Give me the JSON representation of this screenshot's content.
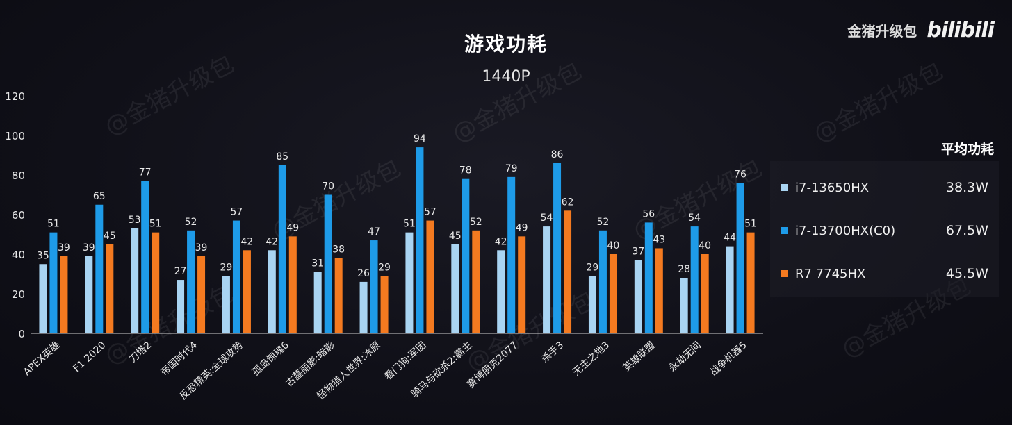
{
  "brand": {
    "name": "金猪升级包",
    "logo": "bilibili"
  },
  "watermark": "@金猪升级包",
  "chart_data": {
    "type": "bar",
    "title": "游戏功耗",
    "subtitle": "1440P",
    "ylim": [
      0,
      120
    ],
    "yticks": [
      0,
      20,
      40,
      60,
      80,
      100,
      120
    ],
    "categories": [
      "APEX英雄",
      "F1 2020",
      "刀塔2",
      "帝国时代4",
      "反恐精英:全球攻势",
      "孤岛惊魂6",
      "古墓丽影:暗影",
      "怪物猎人世界:冰原",
      "看门狗:军团",
      "骑马与砍杀2:霸主",
      "赛博朋克2077",
      "杀手3",
      "无主之地3",
      "英雄联盟",
      "永劫无间",
      "战争机器5"
    ],
    "series": [
      {
        "name": "i7-13650HX",
        "color": "#a9d4f2",
        "values": [
          35,
          39,
          53,
          27,
          29,
          42,
          31,
          26,
          51,
          45,
          42,
          54,
          29,
          37,
          28,
          44
        ]
      },
      {
        "name": "i7-13700HX(C0)",
        "color": "#1e9be8",
        "values": [
          51,
          65,
          77,
          52,
          57,
          85,
          70,
          47,
          94,
          78,
          79,
          86,
          52,
          56,
          54,
          76
        ]
      },
      {
        "name": "R7 7745HX",
        "color": "#f47a20",
        "values": [
          39,
          45,
          51,
          39,
          42,
          49,
          38,
          29,
          57,
          52,
          49,
          62,
          40,
          43,
          40,
          51
        ]
      }
    ],
    "legend": {
      "header": "平均功耗",
      "items": [
        {
          "name": "i7-13650HX",
          "value": "38.3W"
        },
        {
          "name": "i7-13700HX(C0)",
          "value": "67.5W"
        },
        {
          "name": "R7 7745HX",
          "value": "45.5W"
        }
      ]
    }
  }
}
